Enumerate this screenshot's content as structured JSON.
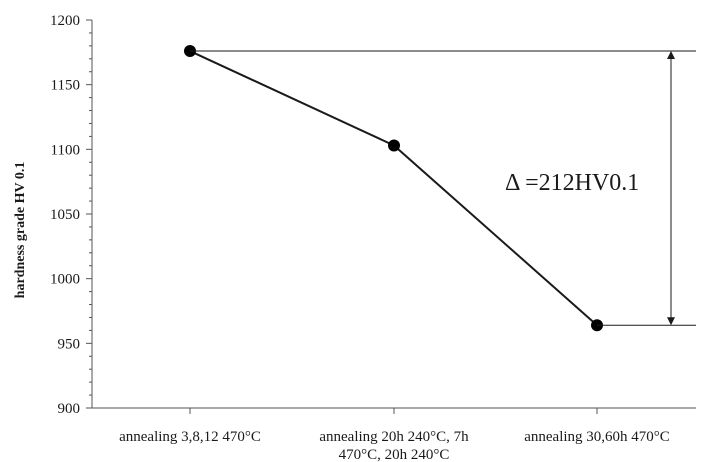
{
  "chart_data": {
    "type": "line",
    "categories": [
      [
        "annealing 3,8,12 470°C"
      ],
      [
        "annealing 20h 240°C, 7h",
        "470°C, 20h 240°C"
      ],
      [
        "annealing 30,60h 470°C"
      ]
    ],
    "values": [
      1176,
      1103,
      964
    ],
    "title": "",
    "xlabel": "",
    "ylabel": "hardness grade HV 0.1",
    "ylim": [
      900,
      1200
    ],
    "yticks": [
      900,
      950,
      1000,
      1050,
      1100,
      1150,
      1200
    ],
    "grid": false,
    "legend": "none",
    "annotation": {
      "text": "Δ =212HV0.1",
      "from": 1176,
      "to": 964
    },
    "colors": {
      "line": "#1a1a1a",
      "marker": "#000000",
      "axis": "#555555"
    }
  }
}
